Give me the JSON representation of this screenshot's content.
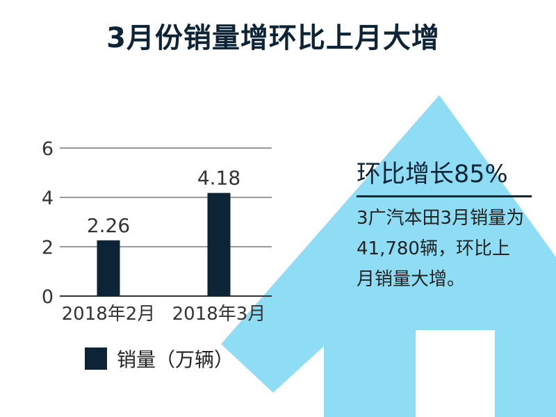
{
  "title": "3月份销量增环比上月大增",
  "colors": {
    "bar": "#0d2436",
    "arrow": "#8fdcf5",
    "grid": "#333333"
  },
  "chart_data": {
    "type": "bar",
    "categories": [
      "2018年2月",
      "2018年3月"
    ],
    "series": [
      {
        "name": "销量（万辆）",
        "values": [
          2.26,
          4.18
        ]
      }
    ],
    "data_labels": [
      "2.26",
      "4.18"
    ],
    "yticks": [
      "0",
      "2",
      "4",
      "6"
    ],
    "ylim": [
      0,
      6
    ],
    "grid": true,
    "legend_position": "bottom"
  },
  "legend": {
    "label": "销量（万辆）"
  },
  "callout": {
    "heading": "环比增长85%",
    "body": "3广汽本田3月销量为41,780辆，环比上月销量大增。"
  }
}
